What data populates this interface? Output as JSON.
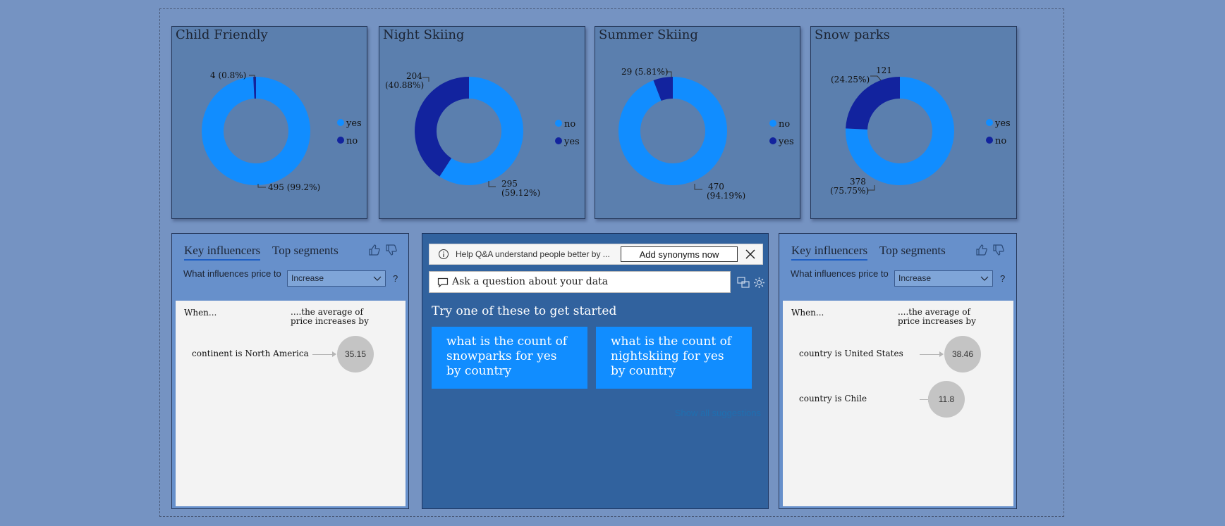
{
  "donuts": [
    {
      "title": "Child Friendly",
      "legend": [
        "yes",
        "no"
      ],
      "labels": {
        "small": "4 (0.8%)",
        "big": "495 (99.2%)"
      }
    },
    {
      "title": "Night Skiing",
      "legend": [
        "no",
        "yes"
      ],
      "labels": {
        "small_line1": "204",
        "small_line2": "(40.88%)",
        "big_line1": "295",
        "big_line2": "(59.12%)"
      }
    },
    {
      "title": "Summer Skiing",
      "legend": [
        "no",
        "yes"
      ],
      "labels": {
        "small": "29 (5.81%)",
        "big_line1": "470",
        "big_line2": "(94.19%)"
      }
    },
    {
      "title": "Snow parks",
      "legend": [
        "yes",
        "no"
      ],
      "labels": {
        "small_line1": "121",
        "small_line2": "(24.25%)",
        "big_line1": "378",
        "big_line2": "(75.75%)"
      }
    }
  ],
  "chart_data": [
    {
      "type": "pie",
      "title": "Child Friendly",
      "categories": [
        "yes",
        "no"
      ],
      "values": [
        495,
        4
      ],
      "percents": [
        99.2,
        0.8
      ]
    },
    {
      "type": "pie",
      "title": "Night Skiing",
      "categories": [
        "no",
        "yes"
      ],
      "values": [
        295,
        204
      ],
      "percents": [
        59.12,
        40.88
      ]
    },
    {
      "type": "pie",
      "title": "Summer Skiing",
      "categories": [
        "no",
        "yes"
      ],
      "values": [
        470,
        29
      ],
      "percents": [
        94.19,
        5.81
      ]
    },
    {
      "type": "pie",
      "title": "Snow parks",
      "categories": [
        "yes",
        "no"
      ],
      "values": [
        378,
        121
      ],
      "percents": [
        75.75,
        24.25
      ]
    }
  ],
  "colors": {
    "light": "#118dff",
    "dark": "#12239e"
  },
  "key_influencers_left": {
    "tab_active": "Key influencers",
    "tab_other": "Top segments",
    "question": "What influences price to",
    "select_value": "Increase",
    "help": "?",
    "when": "When...",
    "avg": "....the average of price increases by",
    "rows": [
      {
        "factor": "continent is North America",
        "value": "35.15"
      }
    ]
  },
  "key_influencers_right": {
    "tab_active": "Key influencers",
    "tab_other": "Top segments",
    "question": "What influences price to",
    "select_value": "Increase",
    "help": "?",
    "when": "When...",
    "avg": "....the average of price increases by",
    "rows": [
      {
        "factor": "country is United States",
        "value": "38.46"
      },
      {
        "factor": "country is Chile",
        "value": "11.8"
      }
    ]
  },
  "qa": {
    "banner_text": "Help Q&A understand people better by ...",
    "synonyms_button": "Add synonyms now",
    "input_placeholder": "Ask a question about your data",
    "heading": "Try one of these to get started",
    "suggestions": [
      "what is the count of snowparks for yes by country",
      "what is the count of nightskiing for yes by country"
    ],
    "show_all": "Show all suggestions"
  }
}
